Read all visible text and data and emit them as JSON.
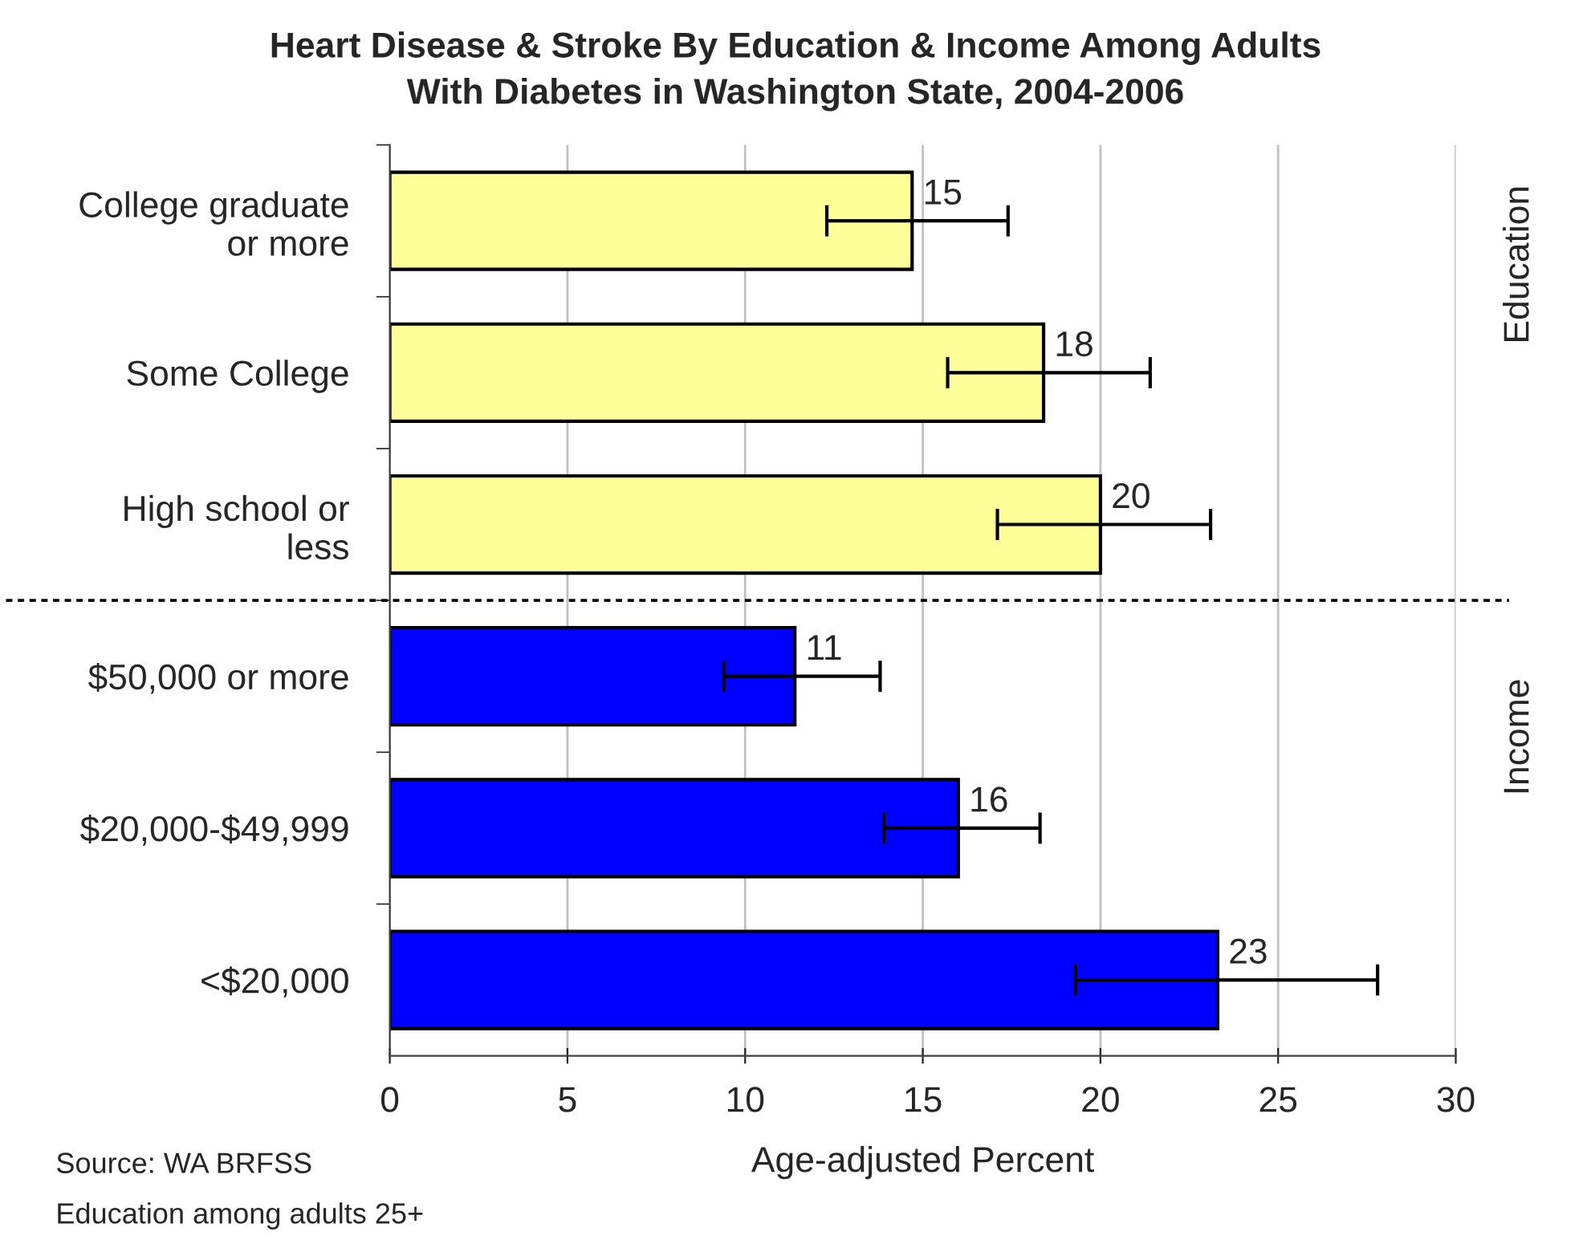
{
  "chart_data": {
    "type": "bar",
    "orientation": "horizontal",
    "title": "Heart Disease & Stroke By Education & Income Among Adults\nWith Diabetes in Washington State, 2004-2006",
    "xlabel": "Age-adjusted Percent",
    "categories": [
      "College graduate\nor more",
      "Some College",
      "High school or\nless",
      "$50,000 or more",
      "$20,000-$49,999",
      "<$20,000"
    ],
    "values": [
      14.7,
      18.4,
      20.0,
      11.4,
      16.0,
      23.3
    ],
    "colors": [
      "#ffff99",
      "#ffff99",
      "#ffff99",
      "#0000ff",
      "#0000ff",
      "#0000ff"
    ],
    "errors": [
      [
        12.3,
        17.4
      ],
      [
        15.7,
        21.4
      ],
      [
        17.1,
        23.1
      ],
      [
        9.4,
        13.8
      ],
      [
        13.9,
        18.3
      ],
      [
        19.3,
        27.8
      ]
    ],
    "value_labels": [
      "15",
      "18",
      "20",
      "11",
      "16",
      "23"
    ],
    "xlim": [
      0,
      30
    ],
    "xticks": [
      0,
      5,
      10,
      15,
      20,
      25,
      30
    ],
    "grid": "x",
    "legend": false,
    "annotations": [
      "Education",
      "Income",
      "Source: WA BRFSS",
      "Education among adults 25+"
    ]
  }
}
